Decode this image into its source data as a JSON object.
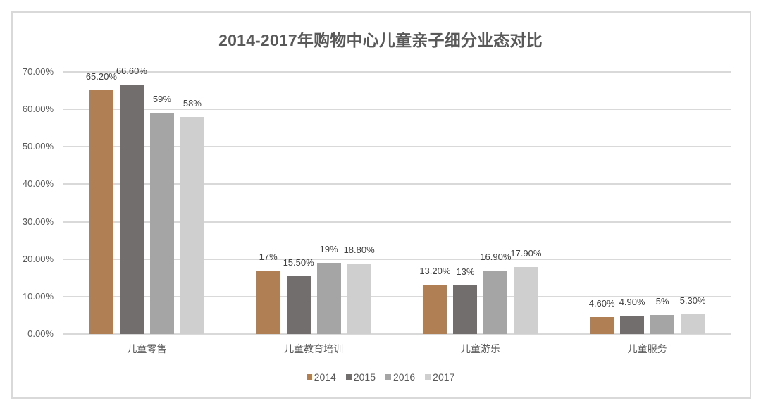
{
  "chart_data": {
    "type": "bar",
    "title": "2014-2017年购物中心儿童亲子细分业态对比",
    "categories": [
      "儿童零售",
      "儿童教育培训",
      "儿童游乐",
      "儿童服务"
    ],
    "series": [
      {
        "name": "2014",
        "color": "#b07f53",
        "values": [
          65.2,
          17,
          13.2,
          4.6
        ],
        "labels": [
          "65.20%",
          "17%",
          "13.20%",
          "4.60%"
        ]
      },
      {
        "name": "2015",
        "color": "#726e6d",
        "values": [
          66.6,
          15.5,
          13,
          4.9
        ],
        "labels": [
          "66.60%",
          "15.50%",
          "13%",
          "4.90%"
        ]
      },
      {
        "name": "2016",
        "color": "#a5a5a5",
        "values": [
          59,
          19,
          16.9,
          5
        ],
        "labels": [
          "59%",
          "19%",
          "16.90%",
          "5%"
        ]
      },
      {
        "name": "2017",
        "color": "#d0cfcf",
        "values": [
          58,
          18.8,
          17.9,
          5.3
        ],
        "labels": [
          "58%",
          "18.80%",
          "17.90%",
          "5.30%"
        ]
      }
    ],
    "yticks": [
      "0.00%",
      "10.00%",
      "20.00%",
      "30.00%",
      "40.00%",
      "50.00%",
      "60.00%",
      "70.00%"
    ],
    "ylim": [
      0,
      70
    ],
    "xlabel": "",
    "ylabel": "",
    "grid": true,
    "legend_position": "bottom"
  }
}
